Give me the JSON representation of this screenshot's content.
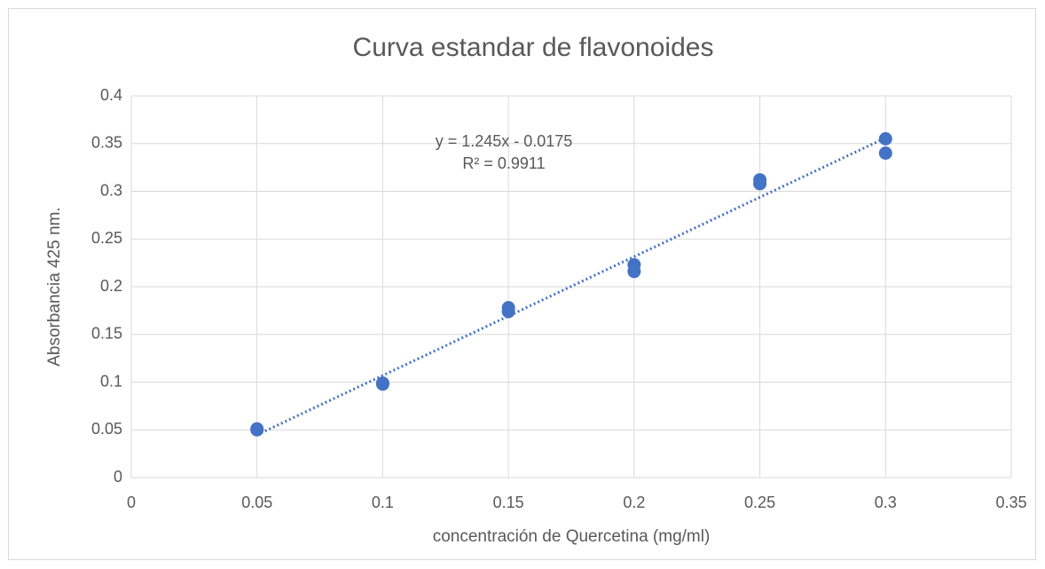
{
  "chart_data": {
    "type": "scatter",
    "title": "Curva estandar de flavonoides",
    "x_label": "concentración de Quercetina (mg/ml)",
    "y_label": "Absorbancia 425 nm.",
    "annotations": [
      "y = 1.245x - 0.0175",
      "R² = 0.9911"
    ],
    "series": [
      {
        "color": "#4472c4",
        "x": [
          0.05,
          0.05,
          0.1,
          0.1,
          0.15,
          0.15,
          0.2,
          0.2,
          0.25,
          0.25,
          0.3,
          0.3
        ],
        "values": [
          0.05,
          0.051,
          0.098,
          0.099,
          0.178,
          0.174,
          0.223,
          0.216,
          0.312,
          0.308,
          0.355,
          0.34
        ]
      }
    ],
    "trendline": {
      "slope": 1.245,
      "intercept": -0.0175,
      "color": "#4472c4"
    },
    "xlim": [
      0,
      0.35
    ],
    "xticks": [
      0,
      0.05,
      0.1,
      0.15,
      0.2,
      0.25,
      0.3,
      0.35
    ],
    "ylim": [
      0,
      0.4
    ],
    "yticks": [
      0,
      0.05,
      0.1,
      0.15,
      0.2,
      0.25,
      0.3,
      0.35,
      0.4
    ],
    "grid": true
  }
}
